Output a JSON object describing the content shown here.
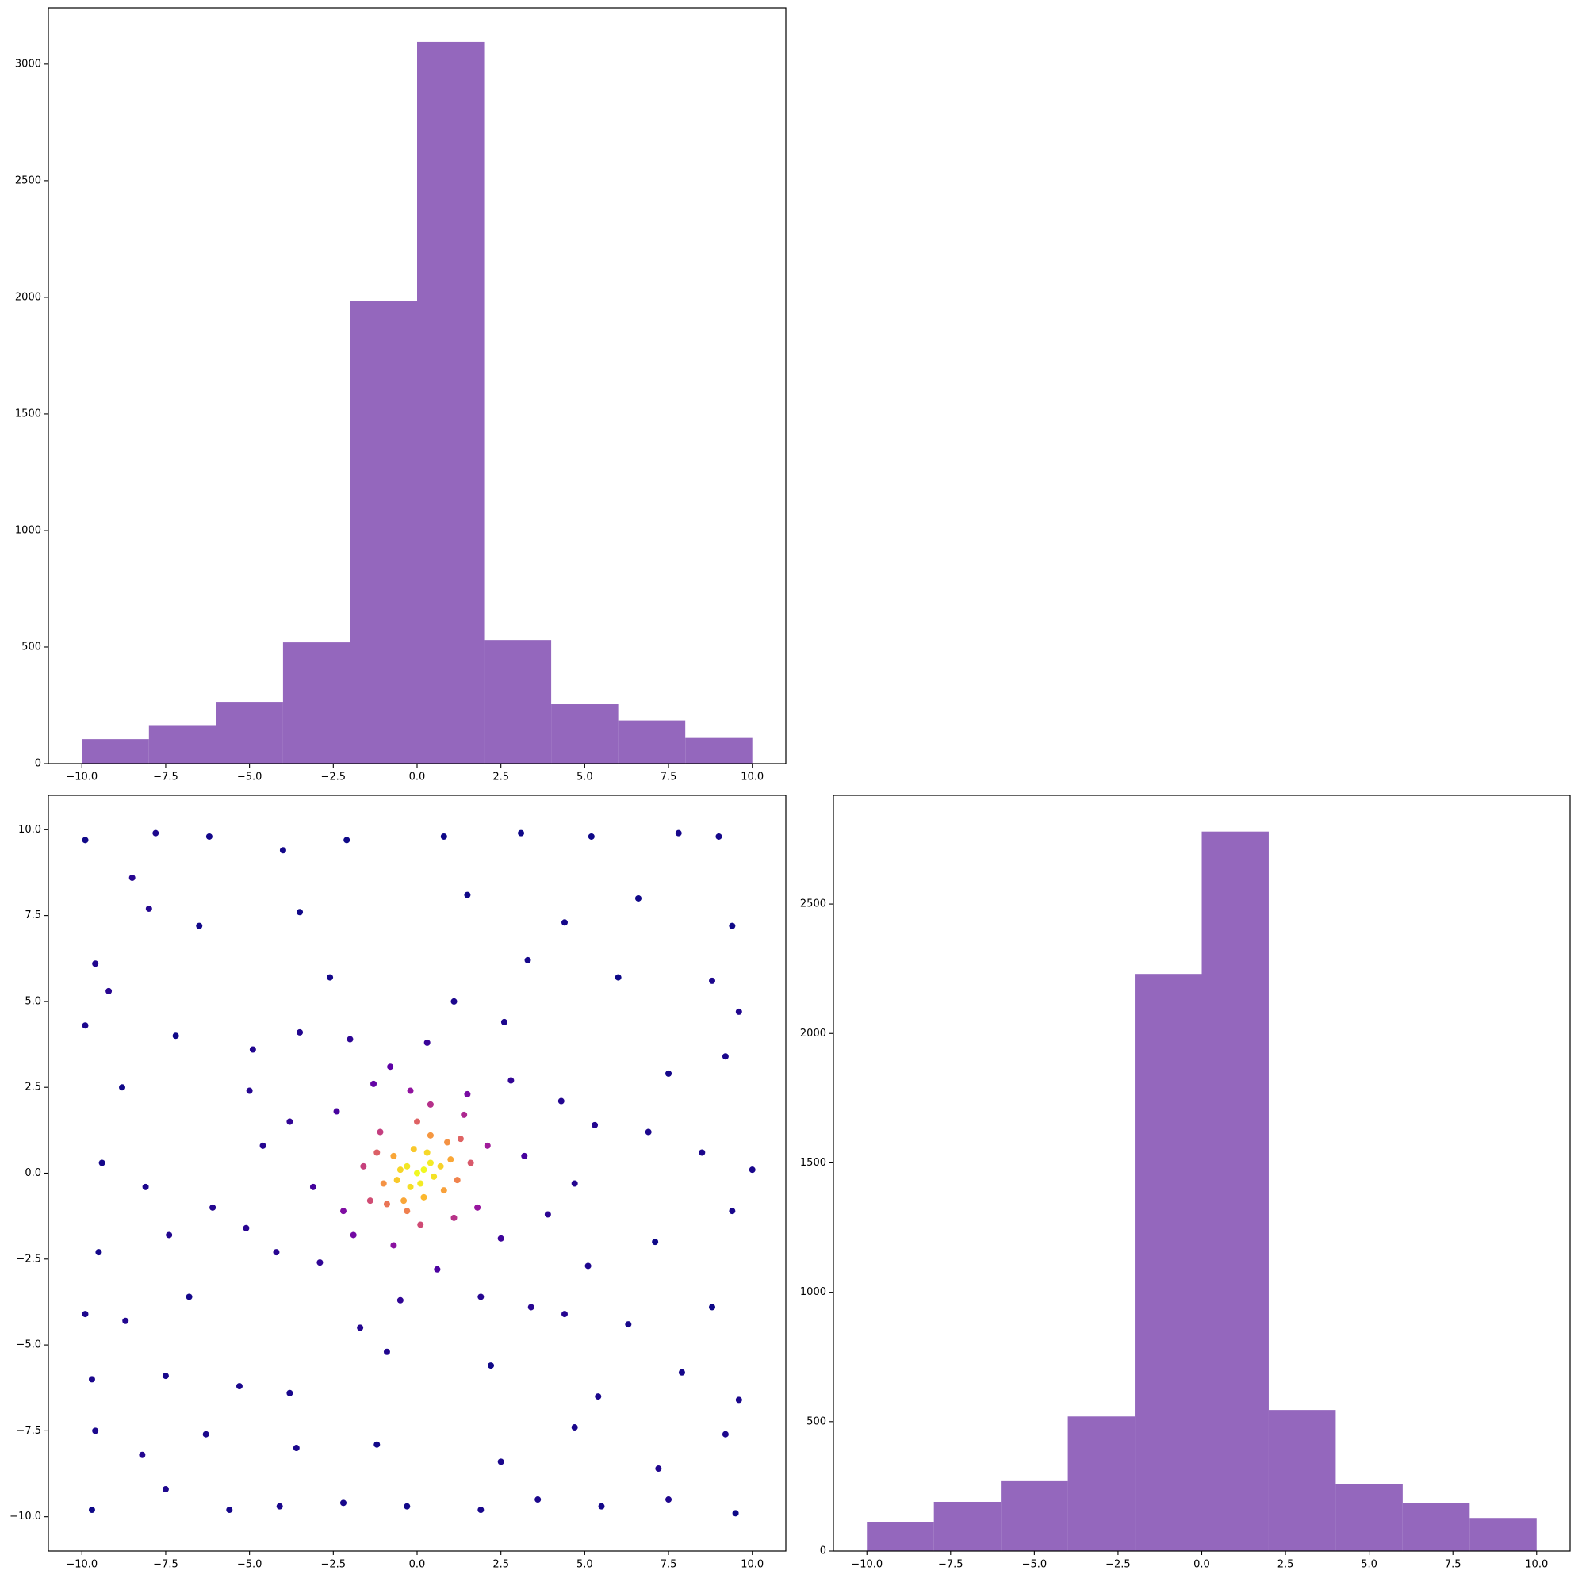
{
  "chart_data": [
    {
      "type": "histogram",
      "bins": [
        -10,
        -8,
        -6,
        -4,
        -2,
        0,
        2,
        4,
        6,
        8,
        10
      ],
      "values": [
        105,
        165,
        265,
        520,
        1985,
        3095,
        530,
        255,
        185,
        110
      ],
      "color": "#9467bd",
      "xlim": [
        -11,
        11
      ],
      "ylim": [
        0,
        3241
      ],
      "xticks": [
        {
          "value": -10,
          "label": "−10.0"
        },
        {
          "value": -7.5,
          "label": "−7.5"
        },
        {
          "value": -5,
          "label": "−5.0"
        },
        {
          "value": -2.5,
          "label": "−2.5"
        },
        {
          "value": 0,
          "label": "0.0"
        },
        2.5,
        {
          "value": 5,
          "label": "5.0"
        },
        7.5,
        {
          "value": 10,
          "label": "10.0"
        }
      ],
      "yticks": [
        0,
        500,
        1000,
        1500,
        2000,
        2500,
        3000
      ]
    },
    {
      "type": "scatter",
      "colormap": "plasma",
      "x": [
        0,
        0.2,
        -0.3,
        0.1,
        0.4,
        -0.2,
        0.5,
        -0.5,
        0.3,
        -0.6,
        0.7,
        -0.1,
        0.2,
        -0.7,
        0.8,
        -0.4,
        1.0,
        -1.0,
        0.4,
        -0.3,
        1.2,
        -1.2,
        0.9,
        -0.9,
        1.3,
        -1.1,
        1.1,
        -1.4,
        0.0,
        0.1,
        1.6,
        -1.6,
        2.1,
        -2.2,
        1.5,
        -1.3,
        2.5,
        -2.4,
        0.6,
        -0.8,
        3.2,
        -3.1,
        2.8,
        -2.9,
        0.3,
        -0.5,
        3.9,
        -3.8,
        1.9,
        -2.0,
        4.3,
        -4.2,
        2.6,
        -1.7,
        4.7,
        -4.6,
        3.4,
        -3.5,
        1.1,
        -0.9,
        5.3,
        -5.1,
        4.4,
        -4.9,
        2.2,
        -2.6,
        0.4,
        -0.7,
        1.8,
        -1.9,
        1.4,
        -0.2,
        -9.9,
        -8.5,
        -7.8,
        -6.2,
        -4.0,
        -2.1,
        0.8,
        3.1,
        5.2,
        7.8,
        9.0,
        -9.6,
        -8.0,
        -6.5,
        -3.5,
        1.5,
        4.4,
        6.6,
        9.4,
        -9.2,
        -7.2,
        6.0,
        8.8,
        9.6,
        -9.9,
        -8.8,
        7.5,
        9.2,
        -9.4,
        -8.1,
        8.5,
        10.0,
        -9.5,
        -7.4,
        7.1,
        9.4,
        -9.9,
        -8.7,
        -6.8,
        6.3,
        8.8,
        -9.7,
        -7.5,
        -5.3,
        5.4,
        7.9,
        9.6,
        -9.6,
        -8.2,
        -6.3,
        -3.6,
        -1.2,
        2.5,
        4.7,
        7.2,
        9.2,
        -9.7,
        -7.5,
        -5.6,
        -4.1,
        -2.2,
        -0.3,
        1.9,
        3.6,
        5.5,
        7.5,
        9.5,
        -5.0,
        5.1,
        -3.8,
        3.3,
        -6.1,
        6.9
      ],
      "y": [
        0,
        0.1,
        0.2,
        -0.3,
        0.3,
        -0.4,
        -0.1,
        0.1,
        0.6,
        -0.2,
        0.2,
        0.7,
        -0.7,
        0.5,
        -0.5,
        -0.8,
        0.4,
        -0.3,
        1.1,
        -1.1,
        -0.2,
        0.6,
        0.9,
        -0.9,
        1.0,
        1.2,
        -1.3,
        -0.8,
        1.5,
        -1.5,
        0.3,
        0.2,
        0.8,
        -1.1,
        2.3,
        2.6,
        -1.9,
        1.8,
        -2.8,
        3.1,
        0.5,
        -0.4,
        2.7,
        -2.6,
        3.8,
        -3.7,
        -1.2,
        1.5,
        -3.6,
        3.9,
        2.1,
        -2.3,
        4.4,
        -4.5,
        -0.3,
        0.8,
        -3.9,
        4.1,
        5.0,
        -5.2,
        1.4,
        -1.6,
        -4.1,
        3.6,
        -5.6,
        5.7,
        2.0,
        -2.1,
        -1.0,
        -1.8,
        1.7,
        2.4,
        9.7,
        8.6,
        9.9,
        9.8,
        9.4,
        9.7,
        9.8,
        9.9,
        9.8,
        9.9,
        9.8,
        6.1,
        7.7,
        7.2,
        7.6,
        8.1,
        7.3,
        8.0,
        7.2,
        5.3,
        4.0,
        5.7,
        5.6,
        4.7,
        4.3,
        2.5,
        2.9,
        3.4,
        0.3,
        -0.4,
        0.6,
        0.1,
        -2.3,
        -1.8,
        -2.0,
        -1.1,
        -4.1,
        -4.3,
        -3.6,
        -4.4,
        -3.9,
        -6.0,
        -5.9,
        -6.2,
        -6.5,
        -5.8,
        -6.6,
        -7.5,
        -8.2,
        -7.6,
        -8.0,
        -7.9,
        -8.4,
        -7.4,
        -8.6,
        -7.6,
        -9.8,
        -9.2,
        -9.8,
        -9.7,
        -9.6,
        -9.7,
        -9.8,
        -9.5,
        -9.7,
        -9.5,
        -9.9,
        2.4,
        -2.7,
        -6.4,
        6.2,
        -1.0,
        1.2
      ],
      "xlim": [
        -11,
        11
      ],
      "ylim": [
        -11,
        11
      ],
      "xticks": [
        {
          "value": -10,
          "label": "−10.0"
        },
        {
          "value": -7.5,
          "label": "−7.5"
        },
        {
          "value": -5,
          "label": "−5.0"
        },
        {
          "value": -2.5,
          "label": "−2.5"
        },
        {
          "value": 0,
          "label": "0.0"
        },
        2.5,
        {
          "value": 5,
          "label": "5.0"
        },
        7.5,
        {
          "value": 10,
          "label": "10.0"
        }
      ],
      "yticks": [
        {
          "value": -10,
          "label": "−10.0"
        },
        {
          "value": -7.5,
          "label": "−7.5"
        },
        {
          "value": -5,
          "label": "−5.0"
        },
        {
          "value": -2.5,
          "label": "−2.5"
        },
        {
          "value": 0,
          "label": "0.0"
        },
        2.5,
        {
          "value": 5,
          "label": "5.0"
        },
        7.5,
        {
          "value": 10,
          "label": "10.0"
        }
      ]
    },
    {
      "type": "histogram",
      "bins": [
        -10,
        -8,
        -6,
        -4,
        -2,
        0,
        2,
        4,
        6,
        8,
        10
      ],
      "values": [
        112,
        190,
        270,
        520,
        2230,
        2780,
        545,
        258,
        185,
        128
      ],
      "color": "#9467bd",
      "xlim": [
        -11,
        11
      ],
      "ylim": [
        0,
        2920
      ],
      "xticks": [
        {
          "value": -10,
          "label": "−10.0"
        },
        {
          "value": -7.5,
          "label": "−7.5"
        },
        {
          "value": -5,
          "label": "−5.0"
        },
        {
          "value": -2.5,
          "label": "−2.5"
        },
        {
          "value": 0,
          "label": "0.0"
        },
        2.5,
        {
          "value": 5,
          "label": "5.0"
        },
        7.5,
        {
          "value": 10,
          "label": "10.0"
        }
      ],
      "yticks": [
        0,
        500,
        1000,
        1500,
        2000,
        2500
      ]
    }
  ]
}
